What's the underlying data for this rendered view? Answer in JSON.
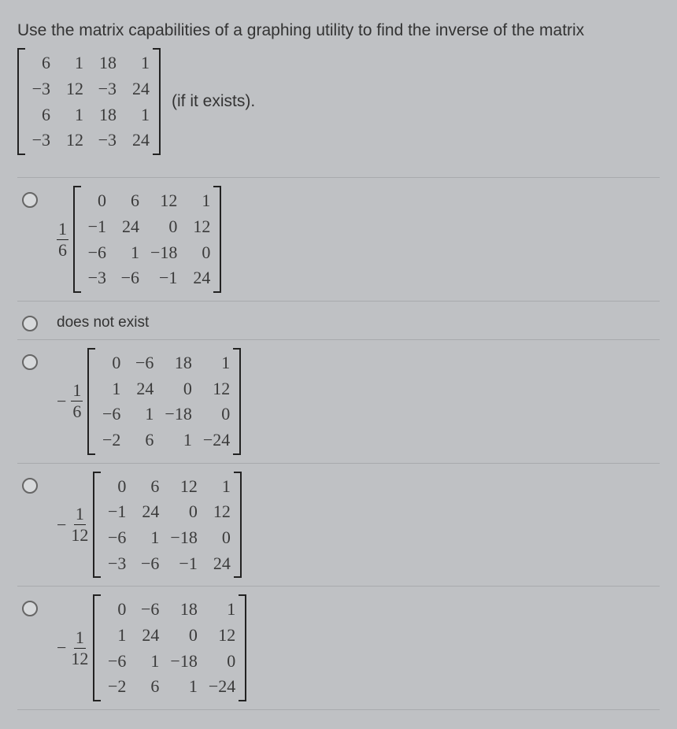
{
  "question": "Use the matrix capabilities of a graphing utility to find the inverse of the matrix",
  "if_exists": "(if it exists).",
  "matrix": {
    "rows": 4,
    "cols": 4,
    "data": [
      [
        "6",
        "1",
        "18",
        "1"
      ],
      [
        "−3",
        "12",
        "−3",
        "24"
      ],
      [
        "6",
        "1",
        "18",
        "1"
      ],
      [
        "−3",
        "12",
        "−3",
        "24"
      ]
    ]
  },
  "options": [
    {
      "type": "fracmatrix",
      "neg": false,
      "frac_num": "1",
      "frac_den": "6",
      "matrix": {
        "rows": 4,
        "cols": 4,
        "data": [
          [
            "0",
            "6",
            "12",
            "1"
          ],
          [
            "−1",
            "24",
            "0",
            "12"
          ],
          [
            "−6",
            "1",
            "−18",
            "0"
          ],
          [
            "−3",
            "−6",
            "−1",
            "24"
          ]
        ]
      }
    },
    {
      "type": "text",
      "label": "does not exist"
    },
    {
      "type": "fracmatrix",
      "neg": true,
      "frac_num": "1",
      "frac_den": "6",
      "matrix": {
        "rows": 4,
        "cols": 4,
        "data": [
          [
            "0",
            "−6",
            "18",
            "1"
          ],
          [
            "1",
            "24",
            "0",
            "12"
          ],
          [
            "−6",
            "1",
            "−18",
            "0"
          ],
          [
            "−2",
            "6",
            "1",
            "−24"
          ]
        ]
      }
    },
    {
      "type": "fracmatrix",
      "neg": true,
      "frac_num": "1",
      "frac_den": "12",
      "matrix": {
        "rows": 4,
        "cols": 4,
        "data": [
          [
            "0",
            "6",
            "12",
            "1"
          ],
          [
            "−1",
            "24",
            "0",
            "12"
          ],
          [
            "−6",
            "1",
            "−18",
            "0"
          ],
          [
            "−3",
            "−6",
            "−1",
            "24"
          ]
        ]
      }
    },
    {
      "type": "fracmatrix",
      "neg": true,
      "frac_num": "1",
      "frac_den": "12",
      "matrix": {
        "rows": 4,
        "cols": 4,
        "data": [
          [
            "0",
            "−6",
            "18",
            "1"
          ],
          [
            "1",
            "24",
            "0",
            "12"
          ],
          [
            "−6",
            "1",
            "−18",
            "0"
          ],
          [
            "−2",
            "6",
            "1",
            "−24"
          ]
        ]
      }
    }
  ]
}
